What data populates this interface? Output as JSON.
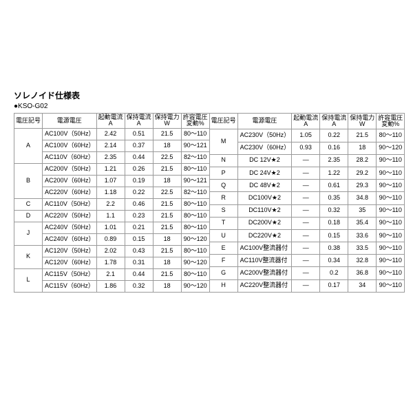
{
  "title": "ソレノイド仕様表",
  "subtitle": "●KSO-G02",
  "headers": {
    "code": "電圧記号",
    "volt": "電源電圧",
    "startA_l1": "起動電流",
    "startA_l2": "A",
    "holdA_l1": "保持電流",
    "holdA_l2": "A",
    "holdW_l1": "保持電力",
    "holdW_l2": "W",
    "tol_l1": "許容電圧",
    "tol_l2": "変動%"
  },
  "left": [
    {
      "c": "A",
      "v": "AC100V（50Hz）",
      "s": "2.42",
      "h": "0.51",
      "w": "21.5",
      "p": "80～110",
      "rs": 3
    },
    {
      "c": "",
      "v": "AC100V（60Hz）",
      "s": "2.14",
      "h": "0.37",
      "w": "18",
      "p": "90～121"
    },
    {
      "c": "",
      "v": "AC110V（60Hz）",
      "s": "2.35",
      "h": "0.44",
      "w": "22.5",
      "p": "82～110"
    },
    {
      "c": "B",
      "v": "AC200V（50Hz）",
      "s": "1.21",
      "h": "0.26",
      "w": "21.5",
      "p": "80～110",
      "rs": 3
    },
    {
      "c": "",
      "v": "AC200V（60Hz）",
      "s": "1.07",
      "h": "0.19",
      "w": "18",
      "p": "90～121"
    },
    {
      "c": "",
      "v": "AC220V（60Hz）",
      "s": "1.18",
      "h": "0.22",
      "w": "22.5",
      "p": "82～110"
    },
    {
      "c": "C",
      "v": "AC110V（50Hz）",
      "s": "2.2",
      "h": "0.46",
      "w": "21.5",
      "p": "80～110"
    },
    {
      "c": "D",
      "v": "AC220V（50Hz）",
      "s": "1.1",
      "h": "0.23",
      "w": "21.5",
      "p": "80～110"
    },
    {
      "c": "J",
      "v": "AC240V（50Hz）",
      "s": "1.01",
      "h": "0.21",
      "w": "21.5",
      "p": "80～110",
      "rs": 2
    },
    {
      "c": "",
      "v": "AC240V（60Hz）",
      "s": "0.89",
      "h": "0.15",
      "w": "18",
      "p": "90～120"
    },
    {
      "c": "K",
      "v": "AC120V（50Hz）",
      "s": "2.02",
      "h": "0.43",
      "w": "21.5",
      "p": "80～110",
      "rs": 2
    },
    {
      "c": "",
      "v": "AC120V（60Hz）",
      "s": "1.78",
      "h": "0.31",
      "w": "18",
      "p": "90～120"
    },
    {
      "c": "L",
      "v": "AC115V（50Hz）",
      "s": "2.1",
      "h": "0.44",
      "w": "21.5",
      "p": "80～110",
      "rs": 2
    },
    {
      "c": "",
      "v": "AC115V（60Hz）",
      "s": "1.86",
      "h": "0.32",
      "w": "18",
      "p": "90～120"
    }
  ],
  "right": [
    {
      "c": "M",
      "v": "AC230V（50Hz）",
      "s": "1.05",
      "h": "0.22",
      "w": "21.5",
      "p": "80～110",
      "rs": 2
    },
    {
      "c": "",
      "v": "AC230V（60Hz）",
      "s": "0.93",
      "h": "0.16",
      "w": "18",
      "p": "90～120"
    },
    {
      "c": "N",
      "v": "DC 12V★2",
      "s": "—",
      "h": "2.35",
      "w": "28.2",
      "p": "90～110",
      "vc": true
    },
    {
      "c": "P",
      "v": "DC 24V★2",
      "s": "—",
      "h": "1.22",
      "w": "29.2",
      "p": "90～110",
      "vc": true
    },
    {
      "c": "Q",
      "v": "DC 48V★2",
      "s": "—",
      "h": "0.61",
      "w": "29.3",
      "p": "90～110",
      "vc": true
    },
    {
      "c": "R",
      "v": "DC100V★2",
      "s": "—",
      "h": "0.35",
      "w": "34.8",
      "p": "90～110",
      "vc": true
    },
    {
      "c": "S",
      "v": "DC110V★2",
      "s": "—",
      "h": "0.32",
      "w": "35",
      "p": "90～110",
      "vc": true
    },
    {
      "c": "T",
      "v": "DC200V★2",
      "s": "—",
      "h": "0.18",
      "w": "35.4",
      "p": "90～110",
      "vc": true
    },
    {
      "c": "U",
      "v": "DC220V★2",
      "s": "—",
      "h": "0.15",
      "w": "33.6",
      "p": "90～110",
      "vc": true
    },
    {
      "c": "E",
      "v": "AC100V整流器付",
      "s": "—",
      "h": "0.38",
      "w": "33.5",
      "p": "90～110"
    },
    {
      "c": "F",
      "v": "AC110V整流器付",
      "s": "—",
      "h": "0.34",
      "w": "32.8",
      "p": "90～110"
    },
    {
      "c": "G",
      "v": "AC200V整流器付",
      "s": "—",
      "h": "0.2",
      "w": "36.8",
      "p": "90～110"
    },
    {
      "c": "H",
      "v": "AC220V整流器付",
      "s": "—",
      "h": "0.17",
      "w": "34",
      "p": "90～110"
    }
  ]
}
